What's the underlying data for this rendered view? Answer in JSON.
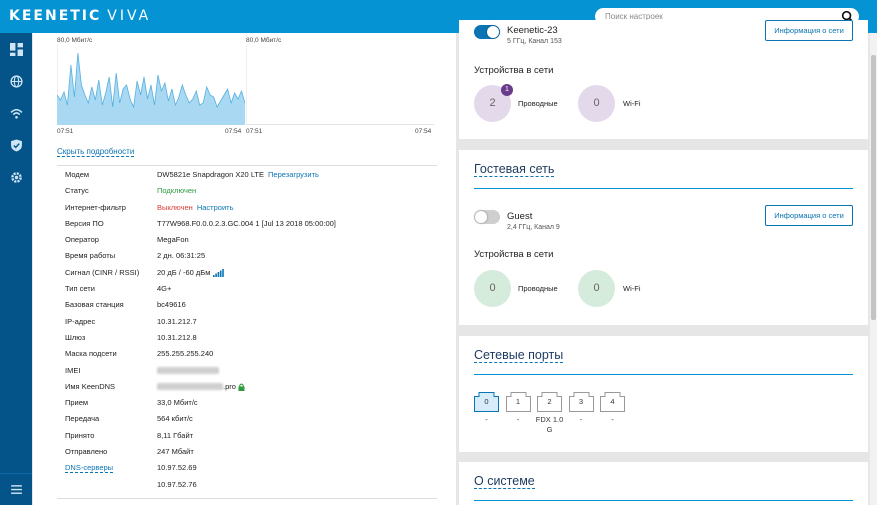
{
  "header": {
    "brand": "KEENETIC",
    "model": "VIVA",
    "search_placeholder": "Поиск настроек"
  },
  "sidebar": {
    "items": [
      {
        "name": "dashboard-icon"
      },
      {
        "name": "globe-icon"
      },
      {
        "name": "wifi-icon"
      },
      {
        "name": "shield-icon"
      },
      {
        "name": "gear-icon"
      }
    ],
    "menu_icon": "menu-icon"
  },
  "traffic": {
    "left": {
      "ymax_label": "80,0 Мбит/с",
      "x_start": "07:51",
      "x_end": "07:54"
    },
    "right": {
      "ymax_label": "80,0 Мбит/с",
      "x_start": "07:51",
      "x_end": "07:54"
    },
    "fill_color": "#a9d9f2",
    "line_color": "#55b0e0"
  },
  "chart_data": [
    {
      "type": "area",
      "ylim": [
        0,
        80
      ],
      "x_tick_labels": [
        "07:51",
        "07:54"
      ],
      "ymax_label": "80,0 Мбит/с",
      "values": [
        30,
        25,
        33,
        20,
        60,
        28,
        72,
        40,
        30,
        22,
        38,
        25,
        45,
        20,
        32,
        48,
        18,
        52,
        22,
        36,
        40,
        26,
        18,
        44,
        30,
        48,
        26,
        40,
        20,
        50,
        34,
        42,
        24,
        36,
        20,
        28,
        40,
        30,
        22,
        26,
        34,
        20,
        22,
        38,
        30,
        28,
        18,
        24,
        30,
        36,
        22,
        32,
        26,
        34,
        22
      ]
    },
    {
      "type": "area",
      "ylim": [
        0,
        80
      ],
      "x_tick_labels": [
        "07:51",
        "07:54"
      ],
      "ymax_label": "80,0 Мбит/с",
      "values": []
    }
  ],
  "details": {
    "toggle_link": "Скрыть подробности",
    "rows": [
      {
        "key": "Модем",
        "value": "DW5821e Snapdragon X20 LTE",
        "action": "Перезагрузить"
      },
      {
        "key": "Статус",
        "value": "Подключен"
      },
      {
        "key": "Интернет-фильтр",
        "value": "Выключен",
        "action": "Настроить"
      },
      {
        "key": "Версия ПО",
        "value": "T77W968.F0.0.0.2.3.GC.004 1 [Jul 13 2018 05:00:00]"
      },
      {
        "key": "Оператор",
        "value": "MegaFon"
      },
      {
        "key": "Время работы",
        "value": "2 дн. 06:31:25"
      },
      {
        "key": "Сигнал (CINR / RSSI)",
        "value": "20 дБ / -60 дБм"
      },
      {
        "key": "Тип сети",
        "value": "4G+"
      },
      {
        "key": "Базовая станция",
        "value": "bc49616"
      },
      {
        "key": "IP-адрес",
        "value": "10.31.212.7"
      },
      {
        "key": "Шлюз",
        "value": "10.31.212.8"
      },
      {
        "key": "Маска подсети",
        "value": "255.255.255.240"
      },
      {
        "key": "IMEI",
        "value": ""
      },
      {
        "key": "Имя KeenDNS",
        "value": ".pro"
      },
      {
        "key": "Прием",
        "value": "33,0 Мбит/с"
      },
      {
        "key": "Передача",
        "value": "564 кбит/с"
      },
      {
        "key": "Принято",
        "value": "8,11 Гбайт"
      },
      {
        "key": "Отправлено",
        "value": "247 Мбайт"
      },
      {
        "key": "DNS-серверы",
        "value": "10.97.52.69"
      },
      {
        "key": "",
        "value": "10.97.52.76"
      }
    ],
    "status_color": "#2e9b3e",
    "filter_color": "#d9403a"
  },
  "home_net": {
    "ssid": "Keenetic-23",
    "sub": "5 ГГц, Канал 153",
    "info_button": "Информация о сети",
    "devices_title": "Устройства в сети",
    "wired_count": "2",
    "wired_badge": "1",
    "wired_label": "Проводные",
    "wifi_count": "0",
    "wifi_label": "Wi-Fi"
  },
  "guest_net": {
    "title": "Гостевая сеть",
    "ssid": "Guest",
    "sub": "2,4 ГГц, Канал 9",
    "info_button": "Информация о сети",
    "devices_title": "Устройства в сети",
    "wired_count": "0",
    "wired_label": "Проводные",
    "wifi_count": "0",
    "wifi_label": "Wi-Fi"
  },
  "ports": {
    "title": "Сетевые порты",
    "items": [
      {
        "num": "0",
        "status": "-",
        "active": true
      },
      {
        "num": "1",
        "status": "-",
        "active": false
      },
      {
        "num": "2",
        "status": "FDX 1.0 G",
        "active": false
      },
      {
        "num": "3",
        "status": "-",
        "active": false
      },
      {
        "num": "4",
        "status": "-",
        "active": false
      }
    ]
  },
  "system": {
    "title": "О системе"
  }
}
